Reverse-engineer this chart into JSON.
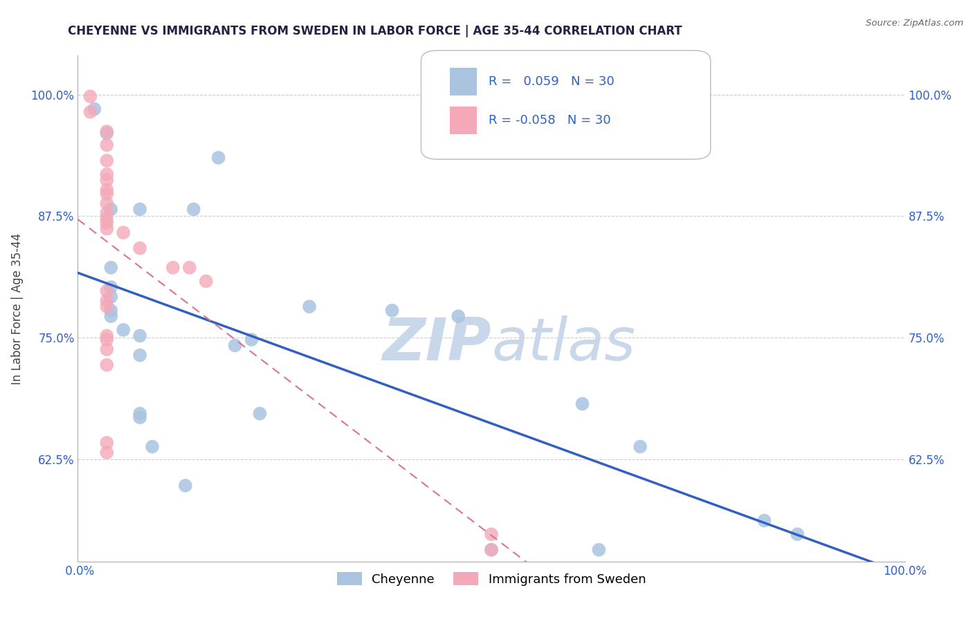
{
  "title": "CHEYENNE VS IMMIGRANTS FROM SWEDEN IN LABOR FORCE | AGE 35-44 CORRELATION CHART",
  "source": "Source: ZipAtlas.com",
  "ylabel": "In Labor Force | Age 35-44",
  "legend_r_blue": "0.059",
  "legend_r_pink": "-0.058",
  "legend_n": "30",
  "legend_label_blue": "Cheyenne",
  "legend_label_pink": "Immigrants from Sweden",
  "blue_color": "#aac4e0",
  "pink_color": "#f4a8b8",
  "blue_line_color": "#3060c0",
  "pink_line_color": "#e07090",
  "pink_line_dash": [
    6,
    4
  ],
  "r_value_color": "#3060c0",
  "watermark_color": "#c8d8ea",
  "background_color": "#ffffff",
  "grid_color": "#cccccc",
  "xlim": [
    0.0,
    1.0
  ],
  "ylim": [
    0.52,
    1.04
  ],
  "yticks": [
    0.625,
    0.75,
    0.875,
    1.0
  ],
  "ytick_labels": [
    "62.5%",
    "75.0%",
    "87.5%",
    "100.0%"
  ],
  "blue_x": [
    0.02,
    0.035,
    0.17,
    0.04,
    0.075,
    0.14,
    0.04,
    0.04,
    0.04,
    0.04,
    0.04,
    0.28,
    0.38,
    0.46,
    0.055,
    0.075,
    0.19,
    0.21,
    0.075,
    0.22,
    0.075,
    0.075,
    0.09,
    0.13,
    0.61,
    0.68,
    0.83,
    0.87,
    0.5,
    0.63
  ],
  "blue_y": [
    0.985,
    0.96,
    0.935,
    0.882,
    0.882,
    0.882,
    0.822,
    0.802,
    0.792,
    0.778,
    0.772,
    0.782,
    0.778,
    0.772,
    0.758,
    0.752,
    0.742,
    0.748,
    0.732,
    0.672,
    0.672,
    0.668,
    0.638,
    0.598,
    0.682,
    0.638,
    0.562,
    0.548,
    0.532,
    0.532
  ],
  "pink_x": [
    0.015,
    0.015,
    0.035,
    0.035,
    0.035,
    0.035,
    0.035,
    0.035,
    0.035,
    0.035,
    0.035,
    0.035,
    0.035,
    0.035,
    0.055,
    0.075,
    0.115,
    0.135,
    0.155,
    0.035,
    0.035,
    0.035,
    0.035,
    0.035,
    0.035,
    0.035,
    0.035,
    0.035,
    0.5,
    0.5
  ],
  "pink_y": [
    0.998,
    0.982,
    0.962,
    0.948,
    0.932,
    0.918,
    0.912,
    0.902,
    0.898,
    0.888,
    0.878,
    0.872,
    0.868,
    0.862,
    0.858,
    0.842,
    0.822,
    0.822,
    0.808,
    0.798,
    0.788,
    0.782,
    0.752,
    0.748,
    0.738,
    0.722,
    0.642,
    0.632,
    0.548,
    0.532
  ]
}
